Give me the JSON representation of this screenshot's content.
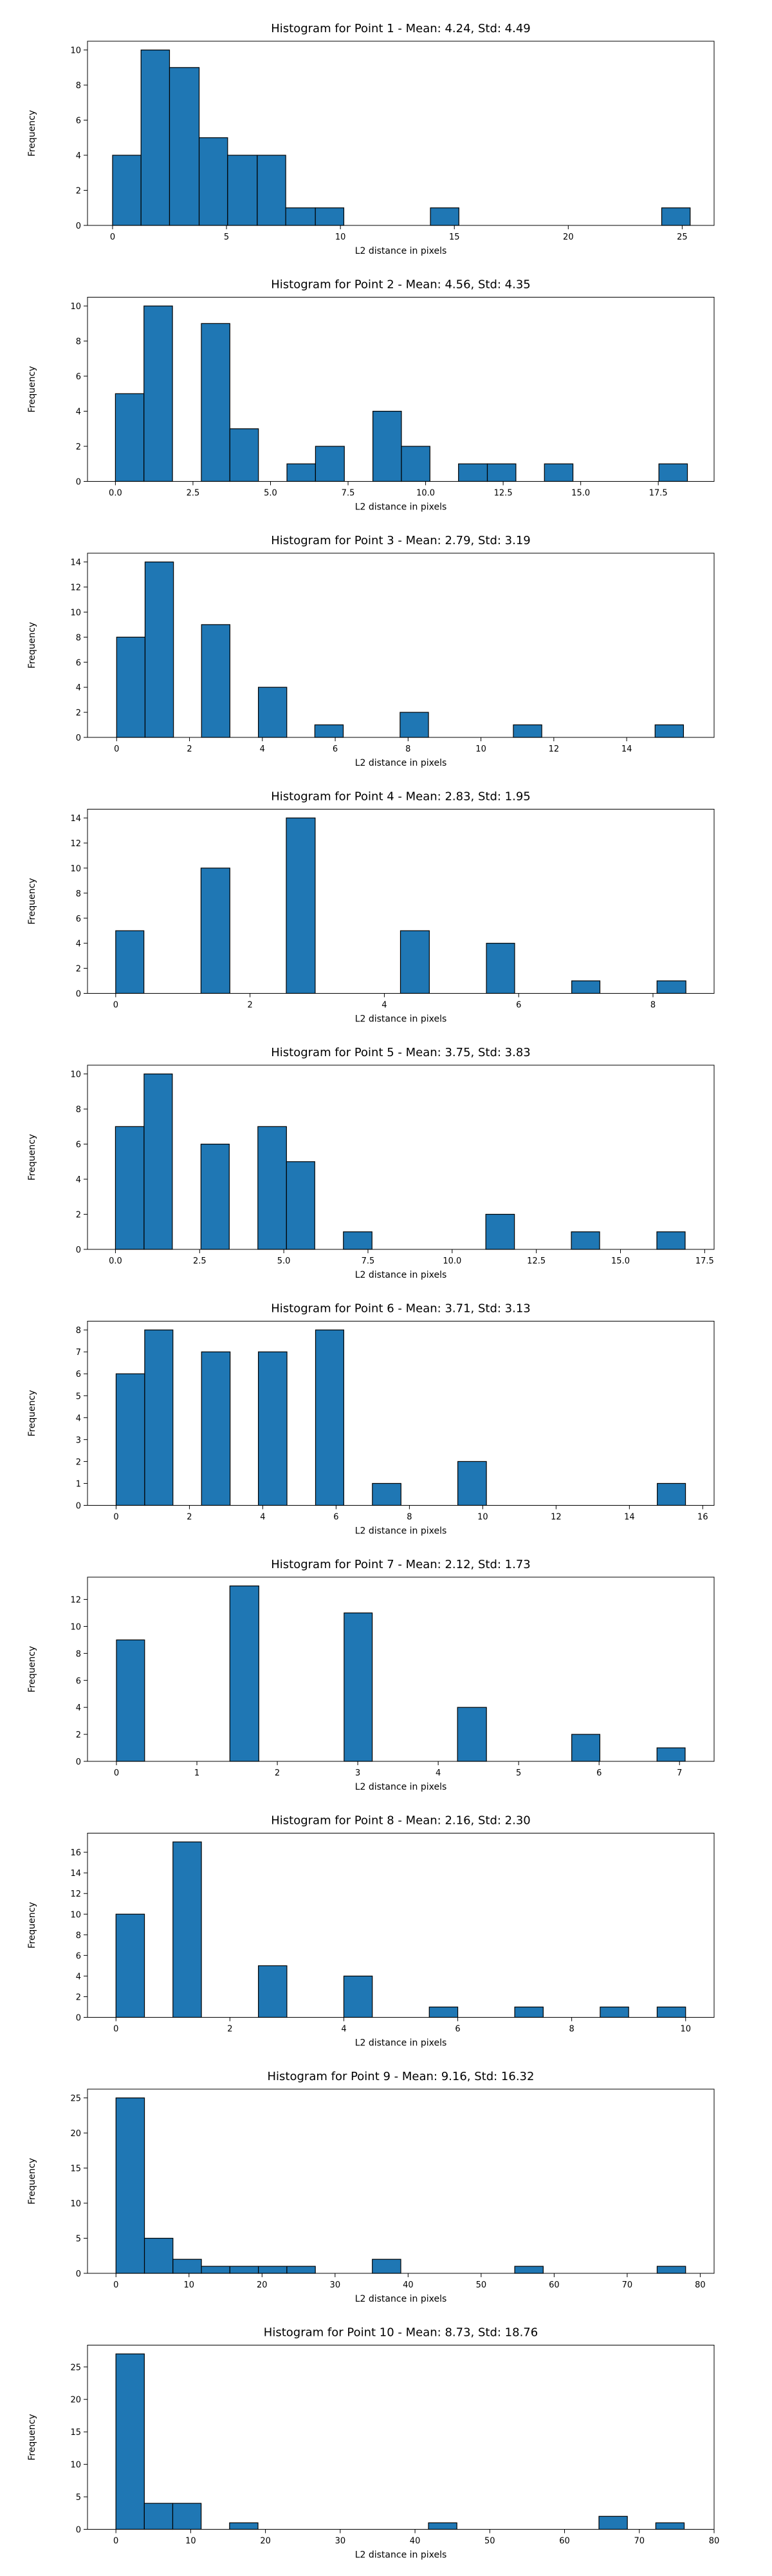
{
  "chart_data": [
    {
      "type": "bar",
      "title": "Histogram for Point 1 - Mean: 4.24, Std: 4.49",
      "xlabel": "L2 distance in pixels",
      "ylabel": "Frequency",
      "xlim": [
        -1.1,
        26.4
      ],
      "ylim": [
        0,
        10.5
      ],
      "xticks": [
        0,
        5,
        10,
        15,
        20,
        25
      ],
      "xtick_labels": [
        "0",
        "5",
        "10",
        "15",
        "20",
        "25"
      ],
      "yticks": [
        0,
        2,
        4,
        6,
        8,
        10
      ],
      "bins": [
        {
          "x0": 0.0,
          "x1": 1.25,
          "count": 4
        },
        {
          "x0": 1.25,
          "x1": 2.5,
          "count": 10
        },
        {
          "x0": 2.5,
          "x1": 3.8,
          "count": 9
        },
        {
          "x0": 3.8,
          "x1": 5.05,
          "count": 5
        },
        {
          "x0": 5.05,
          "x1": 6.35,
          "count": 4
        },
        {
          "x0": 6.35,
          "x1": 7.6,
          "count": 4
        },
        {
          "x0": 7.6,
          "x1": 8.9,
          "count": 1
        },
        {
          "x0": 8.9,
          "x1": 10.15,
          "count": 1
        },
        {
          "x0": 13.95,
          "x1": 15.2,
          "count": 1
        },
        {
          "x0": 24.1,
          "x1": 25.35,
          "count": 1
        }
      ]
    },
    {
      "type": "bar",
      "title": "Histogram for Point 2 - Mean: 4.56, Std: 4.35",
      "xlabel": "L2 distance in pixels",
      "ylabel": "Frequency",
      "xlim": [
        -0.9,
        19.3
      ],
      "ylim": [
        0,
        10.5
      ],
      "xticks": [
        0,
        2.5,
        5,
        7.5,
        10,
        12.5,
        15,
        17.5
      ],
      "xtick_labels": [
        "0.0",
        "2.5",
        "5.0",
        "7.5",
        "10.0",
        "12.5",
        "15.0",
        "17.5"
      ],
      "yticks": [
        0,
        2,
        4,
        6,
        8,
        10
      ],
      "bins": [
        {
          "x0": 0.0,
          "x1": 0.92,
          "count": 5
        },
        {
          "x0": 0.92,
          "x1": 1.84,
          "count": 10
        },
        {
          "x0": 2.77,
          "x1": 3.69,
          "count": 9
        },
        {
          "x0": 3.69,
          "x1": 4.61,
          "count": 3
        },
        {
          "x0": 5.53,
          "x1": 6.45,
          "count": 1
        },
        {
          "x0": 6.45,
          "x1": 7.38,
          "count": 2
        },
        {
          "x0": 8.3,
          "x1": 9.22,
          "count": 4
        },
        {
          "x0": 9.22,
          "x1": 10.14,
          "count": 2
        },
        {
          "x0": 11.06,
          "x1": 11.99,
          "count": 1
        },
        {
          "x0": 11.99,
          "x1": 12.91,
          "count": 1
        },
        {
          "x0": 13.83,
          "x1": 14.75,
          "count": 1
        },
        {
          "x0": 17.52,
          "x1": 18.44,
          "count": 1
        }
      ]
    },
    {
      "type": "bar",
      "title": "Histogram for Point 3 - Mean: 2.79, Std: 3.19",
      "xlabel": "L2 distance in pixels",
      "ylabel": "Frequency",
      "xlim": [
        -0.8,
        16.4
      ],
      "ylim": [
        0,
        14.7
      ],
      "xticks": [
        0,
        2,
        4,
        6,
        8,
        10,
        12,
        14
      ],
      "xtick_labels": [
        "0",
        "2",
        "4",
        "6",
        "8",
        "10",
        "12",
        "14"
      ],
      "yticks": [
        0,
        2,
        4,
        6,
        8,
        10,
        12,
        14
      ],
      "bins": [
        {
          "x0": 0.0,
          "x1": 0.78,
          "count": 8
        },
        {
          "x0": 0.78,
          "x1": 1.56,
          "count": 14
        },
        {
          "x0": 2.33,
          "x1": 3.11,
          "count": 9
        },
        {
          "x0": 3.89,
          "x1": 4.67,
          "count": 4
        },
        {
          "x0": 5.44,
          "x1": 6.22,
          "count": 1
        },
        {
          "x0": 7.78,
          "x1": 8.56,
          "count": 2
        },
        {
          "x0": 10.89,
          "x1": 11.67,
          "count": 1
        },
        {
          "x0": 14.78,
          "x1": 15.56,
          "count": 1
        }
      ]
    },
    {
      "type": "bar",
      "title": "Histogram for Point 4 - Mean: 2.83, Std: 1.95",
      "xlabel": "L2 distance in pixels",
      "ylabel": "Frequency",
      "xlim": [
        -0.42,
        8.91
      ],
      "ylim": [
        0,
        14.7
      ],
      "xticks": [
        0,
        2,
        4,
        6,
        8
      ],
      "xtick_labels": [
        "0",
        "2",
        "4",
        "6",
        "8"
      ],
      "yticks": [
        0,
        2,
        4,
        6,
        8,
        10,
        12,
        14
      ],
      "bins": [
        {
          "x0": 0.0,
          "x1": 0.42,
          "count": 5
        },
        {
          "x0": 1.27,
          "x1": 1.7,
          "count": 10
        },
        {
          "x0": 2.54,
          "x1": 2.97,
          "count": 14
        },
        {
          "x0": 4.24,
          "x1": 4.67,
          "count": 5
        },
        {
          "x0": 5.52,
          "x1": 5.94,
          "count": 4
        },
        {
          "x0": 6.79,
          "x1": 7.21,
          "count": 1
        },
        {
          "x0": 8.06,
          "x1": 8.49,
          "count": 1
        }
      ]
    },
    {
      "type": "bar",
      "title": "Histogram for Point 5 - Mean: 3.75, Std: 3.83",
      "xlabel": "L2 distance in pixels",
      "ylabel": "Frequency",
      "xlim": [
        -0.83,
        17.78
      ],
      "ylim": [
        0,
        10.5
      ],
      "xticks": [
        0,
        2.5,
        5,
        7.5,
        10,
        12.5,
        15,
        17.5
      ],
      "xtick_labels": [
        "0.0",
        "2.5",
        "5.0",
        "7.5",
        "10.0",
        "12.5",
        "15.0",
        "17.5"
      ],
      "yticks": [
        0,
        2,
        4,
        6,
        8,
        10
      ],
      "bins": [
        {
          "x0": 0.0,
          "x1": 0.85,
          "count": 7
        },
        {
          "x0": 0.85,
          "x1": 1.69,
          "count": 10
        },
        {
          "x0": 2.54,
          "x1": 3.38,
          "count": 6
        },
        {
          "x0": 4.23,
          "x1": 5.08,
          "count": 7
        },
        {
          "x0": 5.08,
          "x1": 5.92,
          "count": 5
        },
        {
          "x0": 6.77,
          "x1": 7.62,
          "count": 1
        },
        {
          "x0": 11.0,
          "x1": 11.85,
          "count": 2
        },
        {
          "x0": 13.54,
          "x1": 14.38,
          "count": 1
        },
        {
          "x0": 16.08,
          "x1": 16.92,
          "count": 1
        }
      ]
    },
    {
      "type": "bar",
      "title": "Histogram for Point 6 - Mean: 3.71, Std: 3.13",
      "xlabel": "L2 distance in pixels",
      "ylabel": "Frequency",
      "xlim": [
        -0.78,
        16.31
      ],
      "ylim": [
        0,
        8.4
      ],
      "xticks": [
        0,
        2,
        4,
        6,
        8,
        10,
        12,
        14,
        16
      ],
      "xtick_labels": [
        "0",
        "2",
        "4",
        "6",
        "8",
        "10",
        "12",
        "14",
        "16"
      ],
      "yticks": [
        0,
        1,
        2,
        3,
        4,
        5,
        6,
        7,
        8
      ],
      "bins": [
        {
          "x0": 0.0,
          "x1": 0.78,
          "count": 6
        },
        {
          "x0": 0.78,
          "x1": 1.55,
          "count": 8
        },
        {
          "x0": 2.33,
          "x1": 3.11,
          "count": 7
        },
        {
          "x0": 3.88,
          "x1": 4.66,
          "count": 7
        },
        {
          "x0": 5.44,
          "x1": 6.21,
          "count": 8
        },
        {
          "x0": 6.99,
          "x1": 7.77,
          "count": 1
        },
        {
          "x0": 9.32,
          "x1": 10.1,
          "count": 2
        },
        {
          "x0": 14.76,
          "x1": 15.53,
          "count": 1
        }
      ]
    },
    {
      "type": "bar",
      "title": "Histogram for Point 7 - Mean: 2.12, Std: 1.73",
      "xlabel": "L2 distance in pixels",
      "ylabel": "Frequency",
      "xlim": [
        -0.36,
        7.43
      ],
      "ylim": [
        0,
        13.65
      ],
      "xticks": [
        0,
        1,
        2,
        3,
        4,
        5,
        6,
        7
      ],
      "xtick_labels": [
        "0",
        "1",
        "2",
        "3",
        "4",
        "5",
        "6",
        "7"
      ],
      "yticks": [
        0,
        2,
        4,
        6,
        8,
        10,
        12
      ],
      "bins": [
        {
          "x0": 0.0,
          "x1": 0.35,
          "count": 9
        },
        {
          "x0": 1.41,
          "x1": 1.77,
          "count": 13
        },
        {
          "x0": 2.83,
          "x1": 3.18,
          "count": 11
        },
        {
          "x0": 4.24,
          "x1": 4.6,
          "count": 4
        },
        {
          "x0": 5.66,
          "x1": 6.01,
          "count": 2
        },
        {
          "x0": 6.72,
          "x1": 7.07,
          "count": 1
        }
      ]
    },
    {
      "type": "bar",
      "title": "Histogram for Point 8 - Mean: 2.16, Std: 2.30",
      "xlabel": "L2 distance in pixels",
      "ylabel": "Frequency",
      "xlim": [
        -0.5,
        10.5
      ],
      "ylim": [
        0,
        17.85
      ],
      "xticks": [
        0,
        2,
        4,
        6,
        8,
        10
      ],
      "xtick_labels": [
        "0",
        "2",
        "4",
        "6",
        "8",
        "10"
      ],
      "yticks": [
        0,
        2,
        4,
        6,
        8,
        10,
        12,
        14,
        16
      ],
      "bins": [
        {
          "x0": 0.0,
          "x1": 0.5,
          "count": 10
        },
        {
          "x0": 1.0,
          "x1": 1.5,
          "count": 17
        },
        {
          "x0": 2.5,
          "x1": 3.0,
          "count": 5
        },
        {
          "x0": 4.0,
          "x1": 4.5,
          "count": 4
        },
        {
          "x0": 5.5,
          "x1": 6.0,
          "count": 1
        },
        {
          "x0": 7.0,
          "x1": 7.5,
          "count": 1
        },
        {
          "x0": 8.5,
          "x1": 9.0,
          "count": 1
        },
        {
          "x0": 9.5,
          "x1": 10.0,
          "count": 1
        }
      ]
    },
    {
      "type": "bar",
      "title": "Histogram for Point 9 - Mean: 9.16, Std: 16.32",
      "xlabel": "L2 distance in pixels",
      "ylabel": "Frequency",
      "xlim": [
        -3.9,
        81.9
      ],
      "ylim": [
        0,
        26.25
      ],
      "xticks": [
        0,
        10,
        20,
        30,
        40,
        50,
        60,
        70,
        80
      ],
      "xtick_labels": [
        "0",
        "10",
        "20",
        "30",
        "40",
        "50",
        "60",
        "70",
        "80"
      ],
      "yticks": [
        0,
        5,
        10,
        15,
        20,
        25
      ],
      "bins": [
        {
          "x0": 0.0,
          "x1": 3.9,
          "count": 25
        },
        {
          "x0": 3.9,
          "x1": 7.8,
          "count": 5
        },
        {
          "x0": 7.8,
          "x1": 11.7,
          "count": 2
        },
        {
          "x0": 11.7,
          "x1": 15.6,
          "count": 1
        },
        {
          "x0": 15.6,
          "x1": 19.5,
          "count": 1
        },
        {
          "x0": 19.5,
          "x1": 23.4,
          "count": 1
        },
        {
          "x0": 23.4,
          "x1": 27.3,
          "count": 1
        },
        {
          "x0": 35.1,
          "x1": 39.0,
          "count": 2
        },
        {
          "x0": 54.6,
          "x1": 58.5,
          "count": 1
        },
        {
          "x0": 74.1,
          "x1": 78.0,
          "count": 1
        }
      ]
    },
    {
      "type": "bar",
      "title": "Histogram for Point 10 - Mean: 8.73, Std: 18.76",
      "xlabel": "L2 distance in pixels",
      "ylabel": "Frequency",
      "xlim": [
        -3.8,
        80.0
      ],
      "ylim": [
        0,
        28.35
      ],
      "xticks": [
        0,
        10,
        20,
        30,
        40,
        50,
        60,
        70,
        80
      ],
      "xtick_labels": [
        "0",
        "10",
        "20",
        "30",
        "40",
        "50",
        "60",
        "70",
        "80"
      ],
      "yticks": [
        0,
        5,
        10,
        15,
        20,
        25
      ],
      "bins": [
        {
          "x0": 0.0,
          "x1": 3.8,
          "count": 27
        },
        {
          "x0": 3.8,
          "x1": 7.6,
          "count": 4
        },
        {
          "x0": 7.6,
          "x1": 11.4,
          "count": 4
        },
        {
          "x0": 15.2,
          "x1": 19.0,
          "count": 1
        },
        {
          "x0": 41.8,
          "x1": 45.6,
          "count": 1
        },
        {
          "x0": 64.6,
          "x1": 68.4,
          "count": 2
        },
        {
          "x0": 72.2,
          "x1": 76.0,
          "count": 1
        }
      ]
    }
  ]
}
